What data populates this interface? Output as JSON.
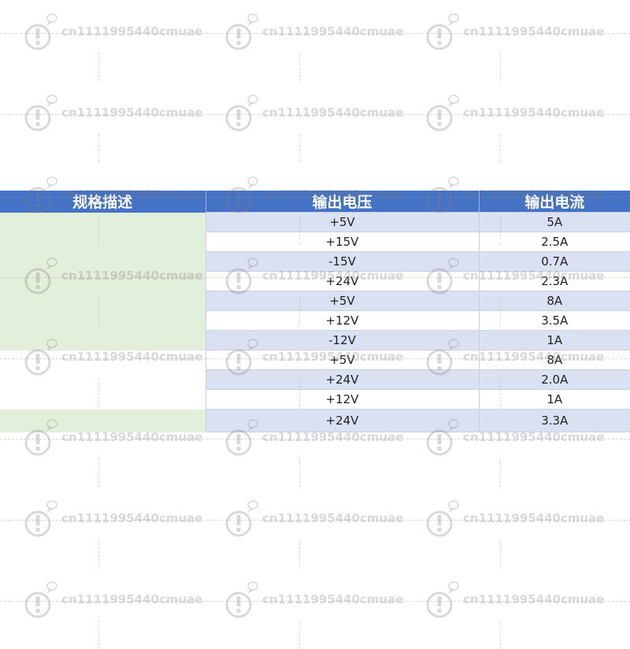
{
  "table": {
    "headers": [
      "规格描述",
      "输出电压",
      "输出电流"
    ],
    "rows": [
      {
        "voltage": "+5V",
        "current": "5A"
      },
      {
        "voltage": "+15V",
        "current": "2.5A"
      },
      {
        "voltage": "-15V",
        "current": "0.7A"
      },
      {
        "voltage": "+24V",
        "current": "2.3A"
      },
      {
        "voltage": "+5V",
        "current": "8A"
      },
      {
        "voltage": "+12V",
        "current": "3.5A"
      },
      {
        "voltage": "-12V",
        "current": "1A"
      },
      {
        "voltage": "+5V",
        "current": "8A"
      },
      {
        "voltage": "+24V",
        "current": "2.0A"
      },
      {
        "voltage": "+12V",
        "current": "1A"
      },
      {
        "voltage": "+24V",
        "current": "3.3A"
      }
    ]
  },
  "watermark": {
    "text": "cn1111995440cmuae"
  },
  "colors": {
    "header_bg": "#4472c4",
    "row_blue": "#d9e1f2",
    "desc_green": "#e2efda",
    "watermark": "#a0a0a0"
  }
}
